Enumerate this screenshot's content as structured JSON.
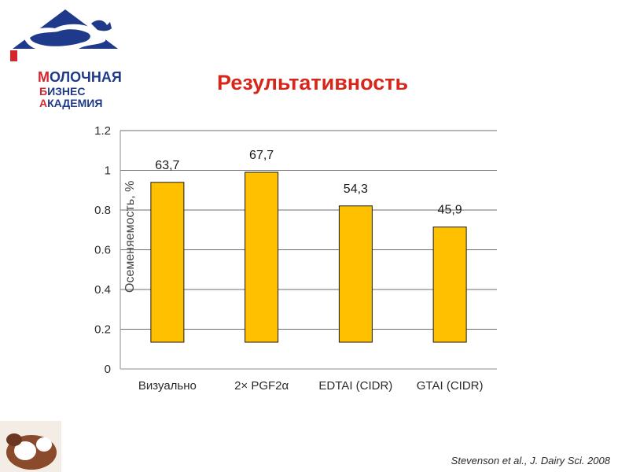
{
  "logo": {
    "line1_initial": "М",
    "line1_rest": "ОЛОЧНАЯ",
    "line2_initial": "Б",
    "line2_rest": "ИЗНЕС",
    "line3_initial": "А",
    "line3_rest": "КАДЕМИЯ"
  },
  "title": "Результативность",
  "citation": "Stevenson et al., J. Dairy Sci. 2008",
  "chart_data": {
    "type": "bar",
    "categories": [
      "Визуально",
      "2× PGF2α",
      "EDTAI (CIDR)",
      "GTAI (CIDR)"
    ],
    "values": [
      63.7,
      67.7,
      54.3,
      45.9
    ],
    "data_labels": [
      "63,7",
      "67,7",
      "54,3",
      "45,9"
    ],
    "y_ticks": [
      "0",
      "0.2",
      "0.4",
      "0.6",
      "0.8",
      "1",
      "1.2"
    ],
    "ylabel": "Осеменяемость, %",
    "ylim": [
      0,
      1.2
    ],
    "grid": true,
    "bar_color": "#ffc000",
    "bar_edge_color": "#1a1a1a"
  }
}
